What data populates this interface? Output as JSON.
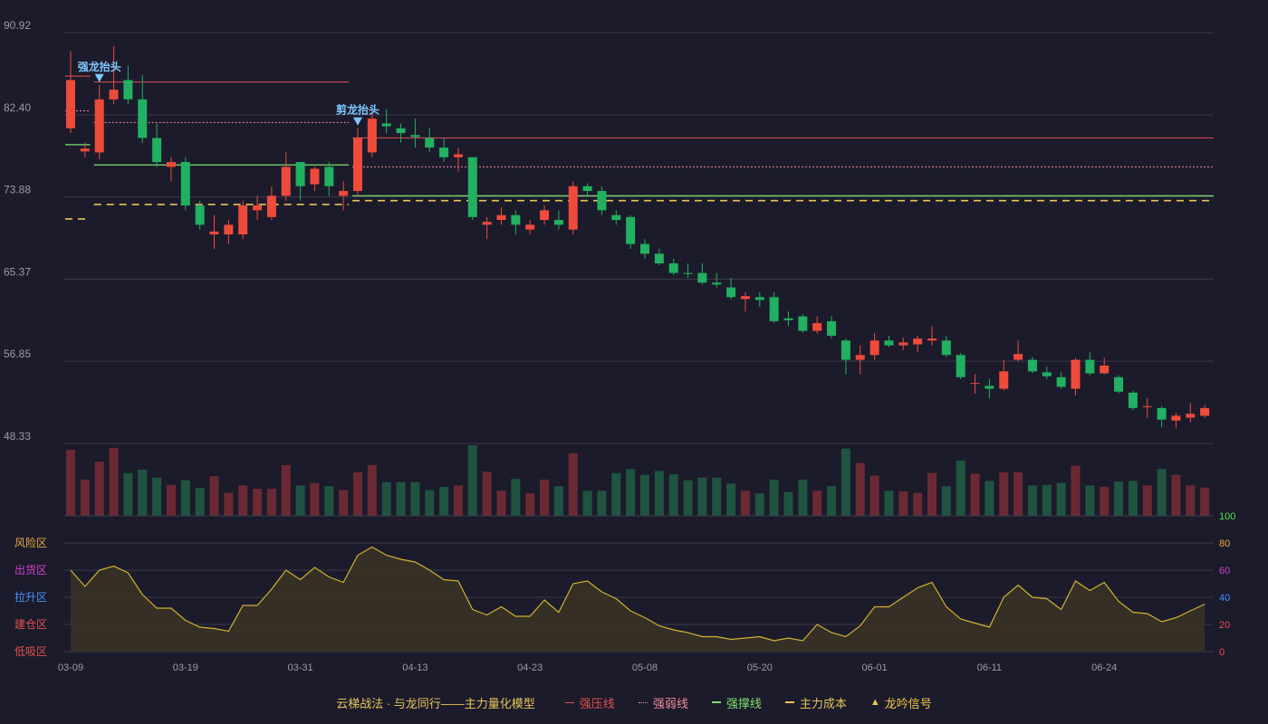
{
  "chart_data": {
    "type": "candlestick",
    "y_axis_labels": [
      "90.92",
      "82.40",
      "73.88",
      "65.37",
      "56.85",
      "48.33"
    ],
    "ylim": [
      48.33,
      90.92
    ],
    "x_tick_labels": [
      {
        "label": "03-09",
        "index": 0
      },
      {
        "label": "03-19",
        "index": 8
      },
      {
        "label": "03-31",
        "index": 16
      },
      {
        "label": "04-13",
        "index": 24
      },
      {
        "label": "04-23",
        "index": 32
      },
      {
        "label": "05-08",
        "index": 40
      },
      {
        "label": "05-20",
        "index": 48
      },
      {
        "label": "06-01",
        "index": 56
      },
      {
        "label": "06-11",
        "index": 64
      },
      {
        "label": "06-24",
        "index": 72
      }
    ],
    "candles": [
      [
        81.0,
        86.0,
        80.5,
        89.0
      ],
      [
        78.6,
        78.9,
        78.0,
        79.5
      ],
      [
        78.5,
        84.0,
        77.8,
        85.5
      ],
      [
        84.0,
        85.0,
        83.5,
        89.5
      ],
      [
        86.0,
        84.0,
        83.5,
        87.5
      ],
      [
        84.0,
        80.0,
        79.5,
        86.5
      ],
      [
        80.0,
        77.5,
        77.0,
        81.5
      ],
      [
        77.0,
        77.5,
        75.5,
        78.0
      ],
      [
        77.5,
        73.0,
        72.5,
        78.0
      ],
      [
        73.0,
        71.0,
        70.5,
        73.5
      ],
      [
        70.0,
        70.3,
        68.5,
        72.0
      ],
      [
        70.0,
        71.0,
        69.0,
        71.5
      ],
      [
        70.0,
        73.0,
        69.5,
        73.5
      ],
      [
        72.5,
        73.0,
        71.5,
        74.0
      ],
      [
        71.8,
        74.0,
        71.5,
        75.0
      ],
      [
        74.0,
        77.0,
        73.5,
        78.5
      ],
      [
        77.5,
        75.0,
        73.5,
        77.5
      ],
      [
        75.2,
        76.8,
        74.5,
        77.0
      ],
      [
        77.0,
        75.0,
        74.0,
        77.5
      ],
      [
        74.0,
        74.5,
        72.5,
        75.5
      ],
      [
        74.5,
        80.0,
        74.0,
        81.0
      ],
      [
        78.5,
        82.0,
        78.0,
        83.0
      ],
      [
        81.5,
        81.2,
        80.5,
        83.0
      ],
      [
        81.0,
        80.5,
        79.5,
        81.5
      ],
      [
        80.3,
        80.1,
        79.0,
        82.0
      ],
      [
        80.0,
        79.0,
        78.5,
        81.0
      ],
      [
        79.0,
        78.0,
        77.5,
        80.0
      ],
      [
        78.0,
        78.3,
        76.5,
        79.0
      ],
      [
        78.0,
        71.8,
        71.5,
        78.0
      ],
      [
        71.0,
        71.3,
        69.5,
        71.8
      ],
      [
        71.5,
        72.0,
        71.0,
        72.8
      ],
      [
        72.0,
        71.0,
        70.0,
        72.5
      ],
      [
        70.5,
        71.0,
        70.0,
        71.5
      ],
      [
        71.5,
        72.5,
        71.0,
        73.0
      ],
      [
        71.5,
        71.0,
        70.5,
        72.5
      ],
      [
        70.5,
        75.0,
        70.0,
        75.5
      ],
      [
        75.0,
        74.5,
        74.0,
        75.3
      ],
      [
        74.5,
        72.5,
        72.0,
        75.0
      ],
      [
        72.0,
        71.5,
        71.0,
        72.5
      ],
      [
        71.8,
        69.0,
        68.5,
        72.0
      ],
      [
        69.0,
        68.0,
        67.5,
        69.5
      ],
      [
        68.0,
        67.0,
        66.8,
        68.5
      ],
      [
        67.0,
        66.0,
        65.8,
        67.5
      ],
      [
        66.0,
        65.9,
        65.5,
        67.0
      ],
      [
        66.0,
        65.0,
        64.8,
        67.0
      ],
      [
        65.0,
        64.8,
        64.5,
        66.0
      ],
      [
        64.5,
        63.5,
        63.3,
        65.5
      ],
      [
        63.3,
        63.6,
        62.0,
        64.0
      ],
      [
        63.5,
        63.2,
        62.5,
        64.0
      ],
      [
        63.5,
        61.0,
        60.8,
        64.0
      ],
      [
        61.3,
        61.1,
        60.5,
        62.0
      ],
      [
        61.5,
        60.0,
        59.8,
        61.7
      ],
      [
        60.0,
        60.8,
        59.7,
        61.5
      ],
      [
        61.0,
        59.5,
        59.2,
        61.5
      ],
      [
        59.0,
        57.0,
        55.5,
        59.2
      ],
      [
        57.0,
        57.5,
        55.5,
        58.5
      ],
      [
        57.5,
        59.0,
        57.0,
        59.8
      ],
      [
        59.0,
        58.5,
        58.3,
        59.5
      ],
      [
        58.5,
        58.8,
        58.0,
        59.3
      ],
      [
        58.6,
        59.2,
        57.8,
        59.5
      ],
      [
        59.0,
        59.2,
        58.5,
        60.5
      ],
      [
        59.0,
        57.5,
        57.3,
        59.5
      ],
      [
        57.5,
        55.2,
        55.0,
        57.7
      ],
      [
        54.5,
        54.6,
        53.5,
        55.5
      ],
      [
        54.3,
        54.0,
        53.0,
        55.0
      ],
      [
        54.0,
        55.8,
        53.8,
        57.0
      ],
      [
        57.0,
        57.6,
        56.8,
        59.0
      ],
      [
        57.0,
        55.8,
        55.6,
        57.3
      ],
      [
        55.7,
        55.3,
        55.0,
        56.3
      ],
      [
        55.2,
        54.2,
        54.0,
        55.7
      ],
      [
        54.0,
        57.0,
        53.3,
        57.2
      ],
      [
        57.0,
        55.6,
        55.4,
        57.8
      ],
      [
        55.6,
        56.4,
        55.5,
        57.2
      ],
      [
        55.2,
        53.7,
        53.5,
        55.4
      ],
      [
        53.6,
        52.0,
        51.8,
        53.8
      ],
      [
        52.1,
        52.2,
        51.0,
        53.0
      ],
      [
        52.0,
        50.8,
        50.0,
        52.2
      ],
      [
        50.7,
        51.2,
        49.9,
        51.5
      ],
      [
        51.0,
        51.4,
        50.5,
        52.5
      ],
      [
        51.2,
        52.0,
        51.0,
        52.3
      ]
    ],
    "volume": [
      100,
      55,
      82,
      103,
      65,
      70,
      58,
      47,
      54,
      42,
      60,
      35,
      46,
      41,
      41,
      77,
      46,
      50,
      45,
      39,
      66,
      77,
      51,
      51,
      51,
      39,
      44,
      46,
      107,
      67,
      38,
      56,
      34,
      55,
      45,
      95,
      38,
      38,
      65,
      71,
      62,
      68,
      63,
      54,
      58,
      58,
      49,
      38,
      34,
      55,
      36,
      55,
      38,
      45,
      102,
      80,
      61,
      38,
      37,
      35,
      65,
      45,
      84,
      64,
      53,
      66,
      66,
      46,
      47,
      50,
      76,
      46,
      44,
      52,
      53,
      46,
      71,
      62,
      46,
      43
    ],
    "oscillator": [
      60,
      48,
      60,
      63,
      58,
      42,
      32,
      32,
      23,
      18,
      17,
      15,
      34,
      34,
      46,
      60,
      53,
      62,
      55,
      51,
      71,
      77,
      71,
      68,
      66,
      60,
      53,
      52,
      31,
      27,
      33,
      26,
      26,
      38,
      29,
      50,
      52,
      44,
      39,
      30,
      25,
      19,
      16,
      14,
      11,
      11,
      9,
      10,
      11,
      8,
      10,
      8,
      20,
      14,
      11,
      19,
      33,
      33,
      40,
      47,
      51,
      33,
      24,
      21,
      18,
      40,
      49,
      40,
      39,
      31,
      52,
      45,
      51,
      37,
      29,
      28,
      22,
      25,
      30,
      35
    ],
    "osc_axis_labels": [
      "100",
      "80",
      "60",
      "40",
      "20",
      "0"
    ],
    "zones": [
      "风险区",
      "出货区",
      "拉升区",
      "建仓区",
      "低吸区"
    ],
    "annotations": [
      {
        "text": "强龙抬头",
        "index": 2
      },
      {
        "text": "剪龙抬头",
        "index": 20
      }
    ],
    "segments": [
      {
        "kind": "pressure",
        "from": 2,
        "to": 19,
        "value": 85.8
      },
      {
        "kind": "weak",
        "from": 2,
        "to": 19,
        "value": 81.6
      },
      {
        "kind": "support",
        "from": 2,
        "to": 19,
        "value": 77.2
      },
      {
        "kind": "cost",
        "from": 2,
        "to": 19,
        "value": 73.1
      },
      {
        "kind": "pressure",
        "from": 20,
        "to": 80,
        "value": 80.0
      },
      {
        "kind": "weak",
        "from": 20,
        "to": 80,
        "value": 77.0
      },
      {
        "kind": "support",
        "from": 20,
        "to": 80,
        "value": 74.0
      },
      {
        "kind": "cost",
        "from": 20,
        "to": 80,
        "value": 73.5
      },
      {
        "kind": "pressure",
        "from": 0,
        "to": 1,
        "value": 86.4
      },
      {
        "kind": "weak",
        "from": 0,
        "to": 1,
        "value": 82.8
      },
      {
        "kind": "support",
        "from": 0,
        "to": 1,
        "value": 79.3
      },
      {
        "kind": "cost",
        "from": 0,
        "to": 1,
        "value": 71.6
      }
    ]
  },
  "colors": {
    "up": "#ef4b3c",
    "down": "#22b061",
    "vol_up": "#6b2a33",
    "vol_down": "#1f5440",
    "pressure": "#e35050",
    "weak": "#f08a9a",
    "support": "#7de06a",
    "cost": "#e8c35a",
    "signal": "#f3c74a",
    "annotation": "#7cc8ff",
    "grid": "#3a3a4e",
    "axis_text": "#9a9aa8",
    "osc_line": "#d2b130",
    "osc_fill": "#3a3324",
    "zone_risk": "#e8a640",
    "zone_ship": "#d040d0",
    "zone_rise": "#4a90ff",
    "zone_build": "#e35050",
    "zone_low": "#e35050",
    "osc_axis": [
      "#50e050",
      "#e8a640",
      "#d040d0",
      "#4a90ff",
      "#e35050",
      "#e35050"
    ]
  },
  "legend": {
    "title": "云梯战法 · 与龙同行——主力量化模型",
    "items": [
      {
        "label": "强压线",
        "icon": "solid-line",
        "color_key": "pressure"
      },
      {
        "label": "强弱线",
        "icon": "dotted-line",
        "color_key": "weak"
      },
      {
        "label": "强撑线",
        "icon": "solid-line",
        "color_key": "support"
      },
      {
        "label": "主力成本",
        "icon": "dashed-line",
        "color_key": "cost"
      },
      {
        "label": "龙吟信号",
        "icon": "triangle-icon",
        "color_key": "signal"
      }
    ]
  }
}
